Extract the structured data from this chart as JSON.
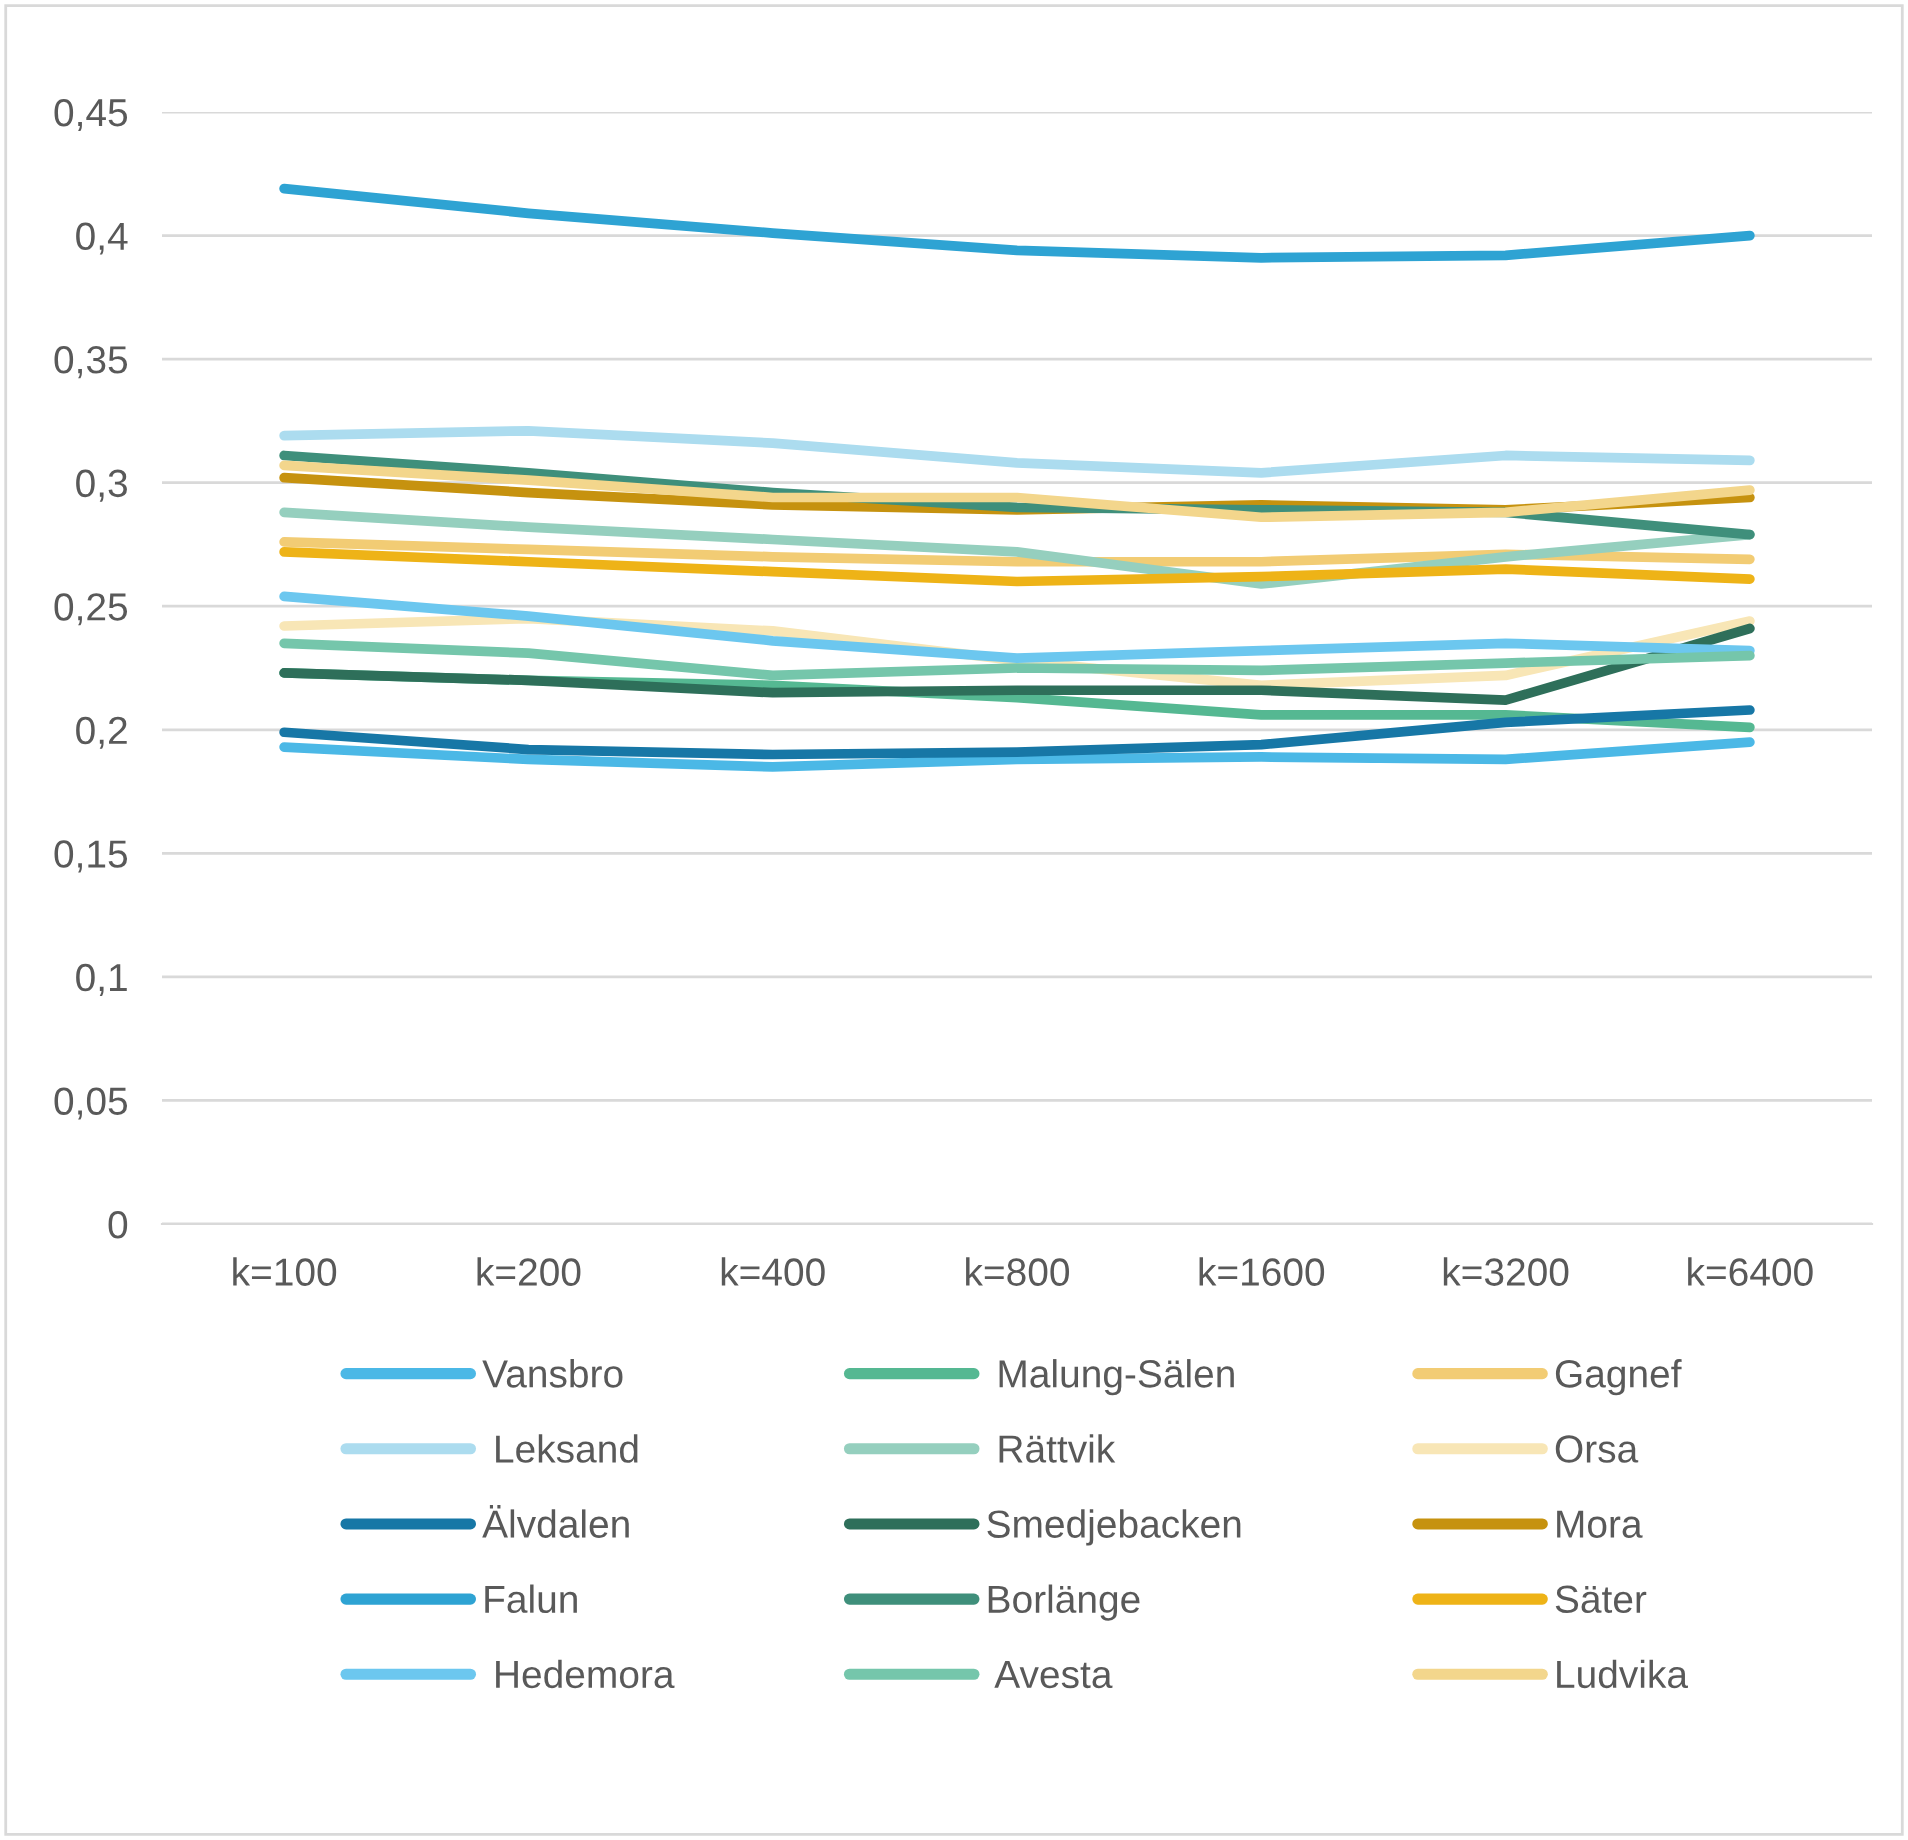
{
  "chart_data": {
    "type": "line",
    "categories": [
      "k=100",
      "k=200",
      "k=400",
      "k=800",
      "k=1600",
      "k=3200",
      "k=6400"
    ],
    "ylim": [
      0,
      0.45
    ],
    "yticks": [
      0,
      {
        "value": 0.05,
        "label": "0,05"
      },
      {
        "value": 0.1,
        "label": "0,1"
      },
      {
        "value": 0.15,
        "label": "0,15"
      },
      {
        "value": 0.2,
        "label": "0,2"
      },
      {
        "value": 0.25,
        "label": "0,25"
      },
      {
        "value": 0.3,
        "label": "0,3"
      },
      {
        "value": 0.35,
        "label": "0,35"
      },
      {
        "value": 0.4,
        "label": "0,4"
      },
      {
        "value": 0.45,
        "label": "0,45"
      }
    ],
    "grid": "y",
    "legend": "bottom",
    "marker": "none",
    "line_style": "solid",
    "series": [
      {
        "name": "Vansbro",
        "color": "#4bb8e6",
        "values": [
          0.193,
          0.188,
          0.185,
          0.188,
          0.189,
          0.188,
          0.195
        ]
      },
      {
        "name": " Malung-Sälen",
        "color": "#55b892",
        "values": [
          0.223,
          0.22,
          0.218,
          0.213,
          0.206,
          0.206,
          0.201
        ]
      },
      {
        "name": "Gagnef",
        "color": "#f2cc74",
        "values": [
          0.276,
          0.273,
          0.27,
          0.268,
          0.268,
          0.271,
          0.269
        ]
      },
      {
        "name": " Leksand",
        "color": "#acdcef",
        "values": [
          0.319,
          0.321,
          0.316,
          0.308,
          0.304,
          0.311,
          0.309
        ]
      },
      {
        "name": " Rättvik",
        "color": "#95cfbe",
        "values": [
          0.288,
          0.282,
          0.277,
          0.272,
          0.259,
          0.27,
          0.279
        ]
      },
      {
        "name": "Orsa",
        "color": "#f8e6b6",
        "values": [
          0.242,
          0.245,
          0.24,
          0.228,
          0.218,
          0.222,
          0.244
        ]
      },
      {
        "name": "Älvdalen",
        "color": "#1777a6",
        "values": [
          0.199,
          0.192,
          0.19,
          0.191,
          0.194,
          0.203,
          0.208
        ]
      },
      {
        "name": "Smedjebacken",
        "color": "#2e6f5a",
        "values": [
          0.223,
          0.22,
          0.215,
          0.216,
          0.216,
          0.212,
          0.241
        ]
      },
      {
        "name": "Mora",
        "color": "#c6920f",
        "values": [
          0.302,
          0.296,
          0.291,
          0.289,
          0.291,
          0.289,
          0.294
        ]
      },
      {
        "name": "Falun",
        "color": "#2ea3d3",
        "values": [
          0.419,
          0.409,
          0.401,
          0.394,
          0.391,
          0.392,
          0.4
        ]
      },
      {
        "name": "Borlänge",
        "color": "#3f8f7b",
        "values": [
          0.311,
          0.304,
          0.296,
          0.29,
          0.289,
          0.288,
          0.279
        ]
      },
      {
        "name": "Säter",
        "color": "#eeb317",
        "values": [
          0.272,
          0.268,
          0.264,
          0.26,
          0.262,
          0.265,
          0.261
        ]
      },
      {
        "name": " Hedemora",
        "color": "#6cc7ef",
        "values": [
          0.254,
          0.246,
          0.236,
          0.229,
          0.232,
          0.235,
          0.232
        ]
      },
      {
        "name": " Avesta",
        "color": "#75c6ab",
        "values": [
          0.235,
          0.231,
          0.222,
          0.225,
          0.224,
          0.227,
          0.23
        ]
      },
      {
        "name": "Ludvika",
        "color": "#f3d68c",
        "values": [
          0.307,
          0.301,
          0.294,
          0.294,
          0.286,
          0.288,
          0.297
        ]
      }
    ]
  }
}
